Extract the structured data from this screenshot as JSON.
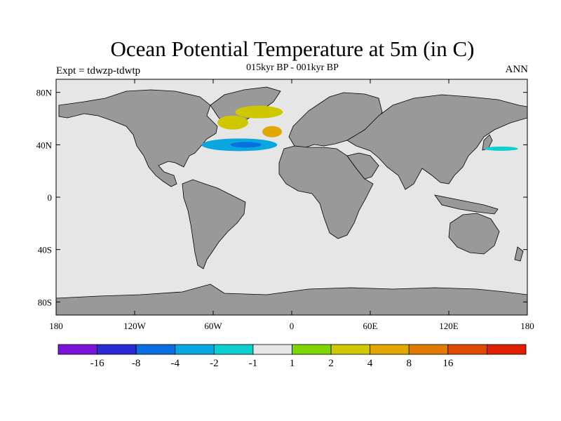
{
  "header": {
    "title": "Ocean Potential Temperature at 5m (in C)",
    "subtitle": "015kyr BP - 001kyr BP",
    "left_label": "Expt = tdwzp-tdwtp",
    "right_label": "ANN"
  },
  "map": {
    "projection": "cylindrical-equidistant",
    "lon_range": [
      -180,
      180
    ],
    "lat_range": [
      -90,
      90
    ],
    "x_ticks": [
      "180",
      "120W",
      "60W",
      "0",
      "60E",
      "120E",
      "180"
    ],
    "y_ticks": [
      "80N",
      "40N",
      "0",
      "40S",
      "80S"
    ],
    "colors": {
      "ocean": "#e6e6e6",
      "land": "#999999",
      "coastline": "#000000"
    }
  },
  "colorbar": {
    "colors": [
      "#7a14d9",
      "#2a2ad6",
      "#0a6fe0",
      "#0aa6e0",
      "#0ad0d0",
      "#e6e6e6",
      "#7fd600",
      "#cfc800",
      "#e0a800",
      "#e07a00",
      "#e04a00",
      "#e01e00"
    ],
    "labels": [
      "-16",
      "-8",
      "-4",
      "-2",
      "-1",
      "1",
      "2",
      "4",
      "8",
      "16"
    ]
  },
  "anomalies": [
    {
      "name": "nordic-warm",
      "lon": -25,
      "lat": 65,
      "value": 3
    },
    {
      "name": "labrador-warm",
      "lon": -45,
      "lat": 57,
      "value": 3
    },
    {
      "name": "iberia-warm",
      "lon": -15,
      "lat": 50,
      "value": 5
    },
    {
      "name": "north-atlantic-cold",
      "lon": -40,
      "lat": 40,
      "value": -3
    },
    {
      "name": "north-atlantic-cold-core",
      "lon": -35,
      "lat": 40,
      "value": -8
    },
    {
      "name": "north-pacific-cold",
      "lon": 160,
      "lat": 37,
      "value": -1.5
    }
  ]
}
